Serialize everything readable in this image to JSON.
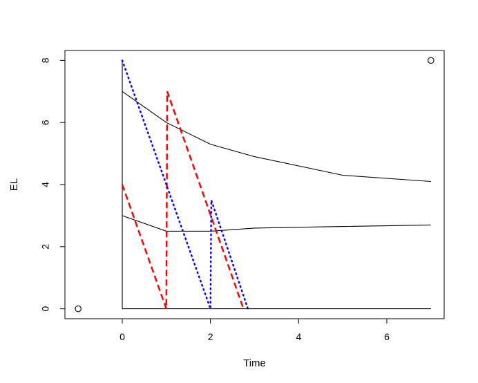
{
  "chart_data": {
    "type": "line",
    "title": "",
    "xlabel": "Time",
    "ylabel": "EL",
    "xlim": [
      -1.3,
      7.3
    ],
    "ylim": [
      -0.32,
      8.32
    ],
    "xticks": [
      0,
      2,
      4,
      6
    ],
    "yticks": [
      0,
      2,
      4,
      6,
      8
    ],
    "grid": false,
    "legend": "none",
    "series": [
      {
        "style": "solid",
        "color": "#000000",
        "points": [
          [
            0,
            0
          ],
          [
            7,
            0
          ]
        ]
      },
      {
        "style": "solid",
        "color": "#000000",
        "points": [
          [
            0,
            0
          ],
          [
            0,
            8
          ]
        ]
      },
      {
        "style": "solid",
        "color": "#000000",
        "points": [
          [
            0,
            7
          ],
          [
            1,
            6
          ],
          [
            2,
            5.3
          ],
          [
            3,
            4.9
          ],
          [
            5,
            4.3
          ],
          [
            7,
            4.1
          ]
        ]
      },
      {
        "style": "solid",
        "color": "#000000",
        "points": [
          [
            0,
            3
          ],
          [
            1,
            2.5
          ],
          [
            2,
            2.5
          ],
          [
            3,
            2.6
          ],
          [
            5,
            2.65
          ],
          [
            7,
            2.7
          ]
        ]
      },
      {
        "style": "dashed",
        "color": "#ff0000",
        "points": [
          [
            0,
            4
          ],
          [
            1,
            0
          ],
          [
            1.02,
            7
          ],
          [
            2.75,
            0
          ]
        ]
      },
      {
        "style": "dotted",
        "color": "#0000ff",
        "points": [
          [
            0,
            8
          ],
          [
            2,
            0
          ],
          [
            2.02,
            3.5
          ],
          [
            2.85,
            0
          ]
        ]
      }
    ],
    "markers": [
      {
        "shape": "circle-open",
        "x": -1,
        "y": 0
      },
      {
        "shape": "circle-open",
        "x": 7,
        "y": 8
      }
    ]
  }
}
